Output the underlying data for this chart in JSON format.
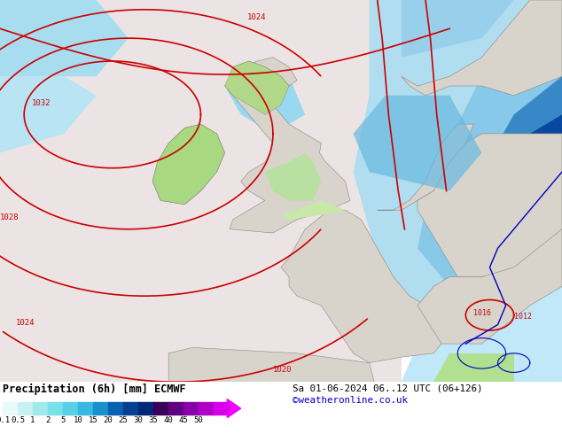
{
  "title_left": "Precipitation (6h) [mm] ECMWF",
  "title_right": "Sa 01-06-2024 06..12 UTC (06+126)",
  "credit": "©weatheronline.co.uk",
  "colorbar_labels": [
    "0.1",
    "0.5",
    "1",
    "2",
    "5",
    "10",
    "15",
    "20",
    "25",
    "30",
    "35",
    "40",
    "45",
    "50"
  ],
  "bg_color": "#f0e8e8",
  "ocean_color": "#b8e8f0",
  "land_color": "#d8d4cc",
  "land_edge": "#888880",
  "isobar_color": "#cc0000",
  "isobar_lw": 1.2,
  "front_color": "#0000bb",
  "font_color": "#000000",
  "credit_color": "#0000cc",
  "map_xlim": [
    -20,
    15
  ],
  "map_ylim": [
    42,
    62
  ],
  "precip_colors": {
    "light1": "#d0f0f8",
    "light2": "#a8e0f0",
    "medium1": "#70c8e8",
    "medium2": "#40a8d0",
    "heavy1": "#1878b8",
    "heavy2": "#0848a0",
    "green1": "#c0e8a0",
    "green2": "#90d060"
  }
}
